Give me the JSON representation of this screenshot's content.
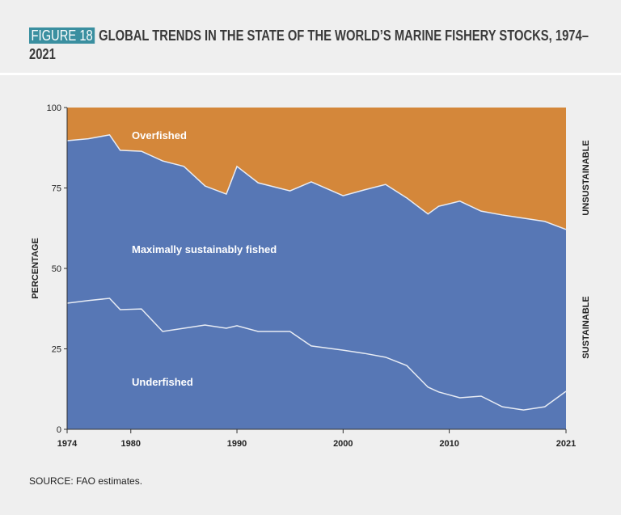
{
  "header": {
    "figure_label": "FIGURE 18",
    "title": "GLOBAL TRENDS IN THE STATE OF THE WORLD’S MARINE FISHERY STOCKS, 1974–2021"
  },
  "source": "SOURCE: FAO estimates.",
  "chart_data": {
    "type": "area",
    "stacked": true,
    "ylabel": "PERCENTAGE",
    "ylim": [
      0,
      100
    ],
    "yticks": [
      0,
      25,
      50,
      75,
      100
    ],
    "xlim": [
      1974,
      2021
    ],
    "xticks": [
      1974,
      1980,
      1990,
      2000,
      2010,
      2021
    ],
    "right_labels": [
      "UNSUSTAINABLE",
      "SUSTAINABLE"
    ],
    "colors": {
      "overfished": "#d4873a",
      "sustainable": "#5777b5",
      "line": "#e8ecf4"
    },
    "x": [
      1974,
      1976,
      1978,
      1979,
      1981,
      1983,
      1985,
      1987,
      1989,
      1990,
      1992,
      1995,
      1997,
      2000,
      2002,
      2004,
      2006,
      2008,
      2009,
      2011,
      2013,
      2015,
      2017,
      2019,
      2021
    ],
    "series": [
      {
        "name": "Underfished",
        "values": [
          39.2,
          40.0,
          40.7,
          37.2,
          37.4,
          30.4,
          31.4,
          32.4,
          31.4,
          32.2,
          30.4,
          30.4,
          25.9,
          24.6,
          23.6,
          22.4,
          19.8,
          13.1,
          11.6,
          9.8,
          10.3,
          7.0,
          6.0,
          7.0,
          11.8
        ]
      },
      {
        "name": "Maximally sustainably fished",
        "values": [
          50.5,
          50.3,
          50.8,
          49.5,
          49.0,
          53.0,
          50.3,
          43.2,
          41.7,
          49.5,
          46.2,
          43.7,
          51.0,
          48.0,
          50.8,
          53.7,
          52.1,
          53.8,
          57.7,
          61.1,
          57.5,
          59.6,
          59.6,
          57.6,
          50.3
        ]
      },
      {
        "name": "Overfished",
        "values": [
          10.3,
          9.7,
          8.5,
          13.3,
          13.6,
          16.6,
          18.3,
          24.4,
          26.9,
          18.3,
          23.4,
          25.9,
          23.1,
          27.4,
          25.6,
          23.9,
          28.1,
          33.1,
          30.7,
          29.1,
          32.2,
          33.4,
          34.4,
          35.4,
          37.9
        ]
      }
    ]
  }
}
